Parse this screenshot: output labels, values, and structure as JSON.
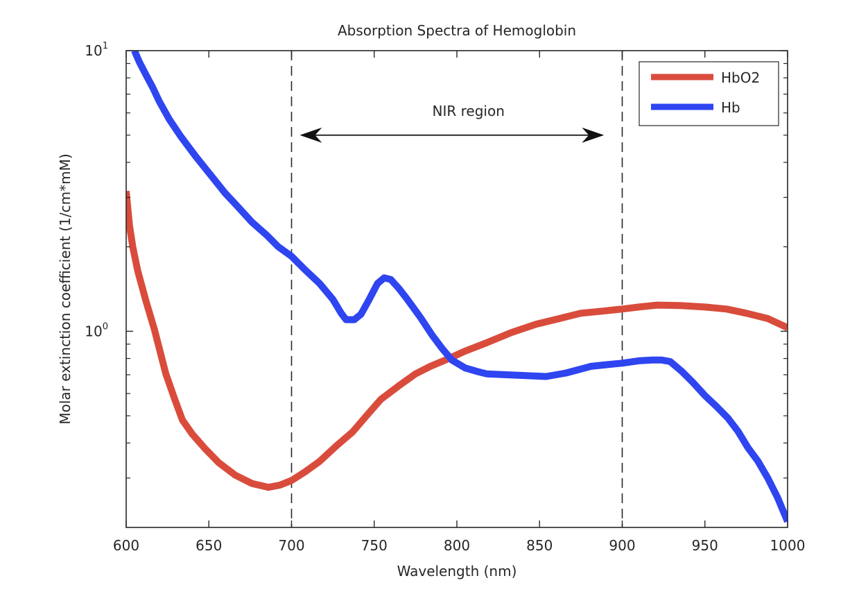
{
  "chart_data": {
    "type": "line",
    "title": "Absorption Spectra of Hemoglobin",
    "xlabel": "Wavelength (nm)",
    "ylabel": "Molar extinction coefficient (1/cm*mM)",
    "xlim": [
      600,
      1000
    ],
    "ylim": [
      0.2,
      10
    ],
    "yscale": "log",
    "grid": false,
    "x_ticks": [
      600,
      650,
      700,
      750,
      800,
      850,
      900,
      950,
      1000
    ],
    "x_tick_labels": [
      "600",
      "650",
      "700",
      "750",
      "800",
      "850",
      "900",
      "950",
      "1000"
    ],
    "y_ticks": [
      {
        "value": 1,
        "base": "10",
        "exp": "0"
      },
      {
        "value": 10,
        "base": "10",
        "exp": "1"
      }
    ],
    "legend": {
      "placement": "top-right",
      "entries": [
        "HbO2",
        "Hb"
      ]
    },
    "series": [
      {
        "name": "HbO2",
        "color": "#D94C3C",
        "points": [
          [
            600,
            3.16
          ],
          [
            602,
            2.38
          ],
          [
            604,
            2.0
          ],
          [
            607,
            1.64
          ],
          [
            612,
            1.28
          ],
          [
            617,
            1.02
          ],
          [
            624,
            0.705
          ],
          [
            629,
            0.58
          ],
          [
            634,
            0.483
          ],
          [
            640,
            0.43
          ],
          [
            648,
            0.38
          ],
          [
            656,
            0.34
          ],
          [
            666,
            0.307
          ],
          [
            676,
            0.287
          ],
          [
            686,
            0.278
          ],
          [
            693,
            0.283
          ],
          [
            700,
            0.294
          ],
          [
            708,
            0.315
          ],
          [
            717,
            0.344
          ],
          [
            727,
            0.39
          ],
          [
            737,
            0.438
          ],
          [
            746,
            0.505
          ],
          [
            754,
            0.572
          ],
          [
            765,
            0.64
          ],
          [
            775,
            0.705
          ],
          [
            784,
            0.75
          ],
          [
            793,
            0.79
          ],
          [
            805,
            0.85
          ],
          [
            818,
            0.91
          ],
          [
            833,
            0.99
          ],
          [
            848,
            1.06
          ],
          [
            862,
            1.11
          ],
          [
            875,
            1.16
          ],
          [
            888,
            1.18
          ],
          [
            900,
            1.2
          ],
          [
            910,
            1.22
          ],
          [
            921,
            1.24
          ],
          [
            935,
            1.235
          ],
          [
            950,
            1.22
          ],
          [
            963,
            1.2
          ],
          [
            975,
            1.16
          ],
          [
            988,
            1.11
          ],
          [
            1000,
            1.03
          ]
        ]
      },
      {
        "name": "Hb",
        "color": "#2E45F0",
        "points": [
          [
            605,
            10.0
          ],
          [
            608,
            9.1
          ],
          [
            612,
            8.2
          ],
          [
            616,
            7.4
          ],
          [
            620,
            6.6
          ],
          [
            626,
            5.7
          ],
          [
            633,
            4.95
          ],
          [
            642,
            4.2
          ],
          [
            652,
            3.55
          ],
          [
            660,
            3.1
          ],
          [
            667,
            2.8
          ],
          [
            676,
            2.45
          ],
          [
            685,
            2.2
          ],
          [
            692,
            2.0
          ],
          [
            700,
            1.85
          ],
          [
            708,
            1.66
          ],
          [
            717,
            1.48
          ],
          [
            725,
            1.3
          ],
          [
            730,
            1.16
          ],
          [
            733,
            1.1
          ],
          [
            738,
            1.1
          ],
          [
            742,
            1.15
          ],
          [
            747,
            1.3
          ],
          [
            752,
            1.48
          ],
          [
            756,
            1.55
          ],
          [
            760,
            1.53
          ],
          [
            765,
            1.42
          ],
          [
            770,
            1.3
          ],
          [
            778,
            1.12
          ],
          [
            785,
            0.97
          ],
          [
            791,
            0.87
          ],
          [
            797,
            0.79
          ],
          [
            805,
            0.74
          ],
          [
            812,
            0.72
          ],
          [
            818,
            0.705
          ],
          [
            830,
            0.7
          ],
          [
            842,
            0.695
          ],
          [
            854,
            0.69
          ],
          [
            866,
            0.71
          ],
          [
            881,
            0.75
          ],
          [
            890,
            0.76
          ],
          [
            900,
            0.77
          ],
          [
            910,
            0.785
          ],
          [
            918,
            0.79
          ],
          [
            924,
            0.79
          ],
          [
            929,
            0.78
          ],
          [
            936,
            0.72
          ],
          [
            943,
            0.655
          ],
          [
            950,
            0.59
          ],
          [
            957,
            0.54
          ],
          [
            964,
            0.49
          ],
          [
            970,
            0.44
          ],
          [
            976,
            0.385
          ],
          [
            982,
            0.345
          ],
          [
            988,
            0.3
          ],
          [
            994,
            0.255
          ],
          [
            1000,
            0.21
          ]
        ]
      }
    ],
    "reference_lines": [
      {
        "type": "vertical",
        "x": 700,
        "style": "dashed"
      },
      {
        "type": "vertical",
        "x": 900,
        "style": "dashed"
      }
    ],
    "annotations": [
      {
        "type": "double-arrow",
        "x_start": 705,
        "x_end": 889,
        "y": 5
      },
      {
        "type": "text",
        "text": "NIR region",
        "x": 807,
        "y": 6.1
      }
    ]
  }
}
